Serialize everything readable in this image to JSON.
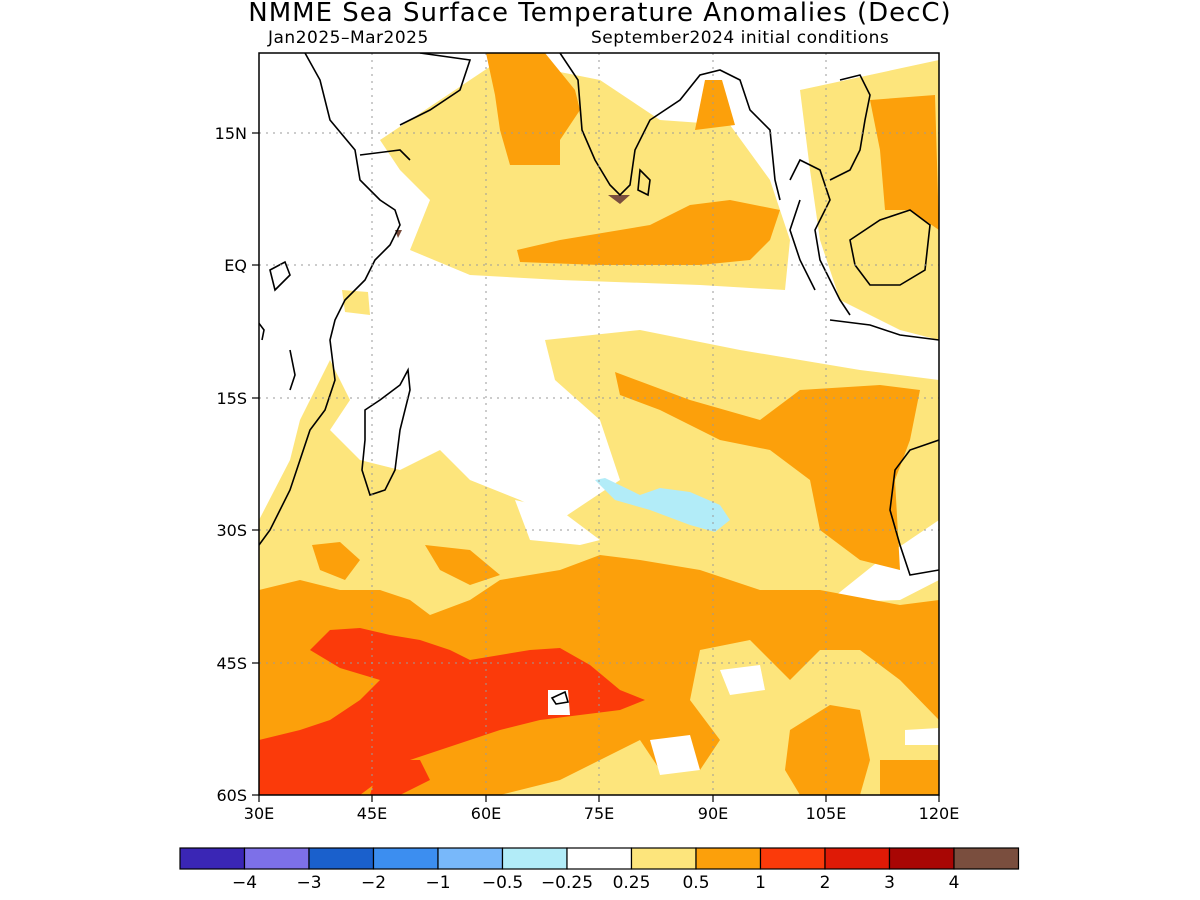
{
  "title": "NMME Sea Surface Temperature Anomalies (DecC)",
  "period": "Jan2025–Mar2025",
  "initial_conditions": "September2024 initial conditions",
  "map": {
    "lat_ticks": [
      "15N",
      "EQ",
      "15S",
      "30S",
      "45S",
      "60S"
    ],
    "lon_ticks": [
      "30E",
      "45E",
      "60E",
      "75E",
      "90E",
      "105E",
      "120E"
    ],
    "grid": true
  },
  "colorbar": {
    "colors": [
      "#3a26b5",
      "#7d70e8",
      "#1a60cc",
      "#3c8ef0",
      "#78b8fa",
      "#b2ecf8",
      "#ffffff",
      "#fde57c",
      "#fca00b",
      "#fb3a0a",
      "#df1a06",
      "#a80604",
      "#7a4e3e"
    ],
    "labels": [
      "−4",
      "−3",
      "−2",
      "−1",
      "−0.5",
      "−0.25",
      "0.25",
      "0.5",
      "1",
      "2",
      "3",
      "4"
    ]
  }
}
